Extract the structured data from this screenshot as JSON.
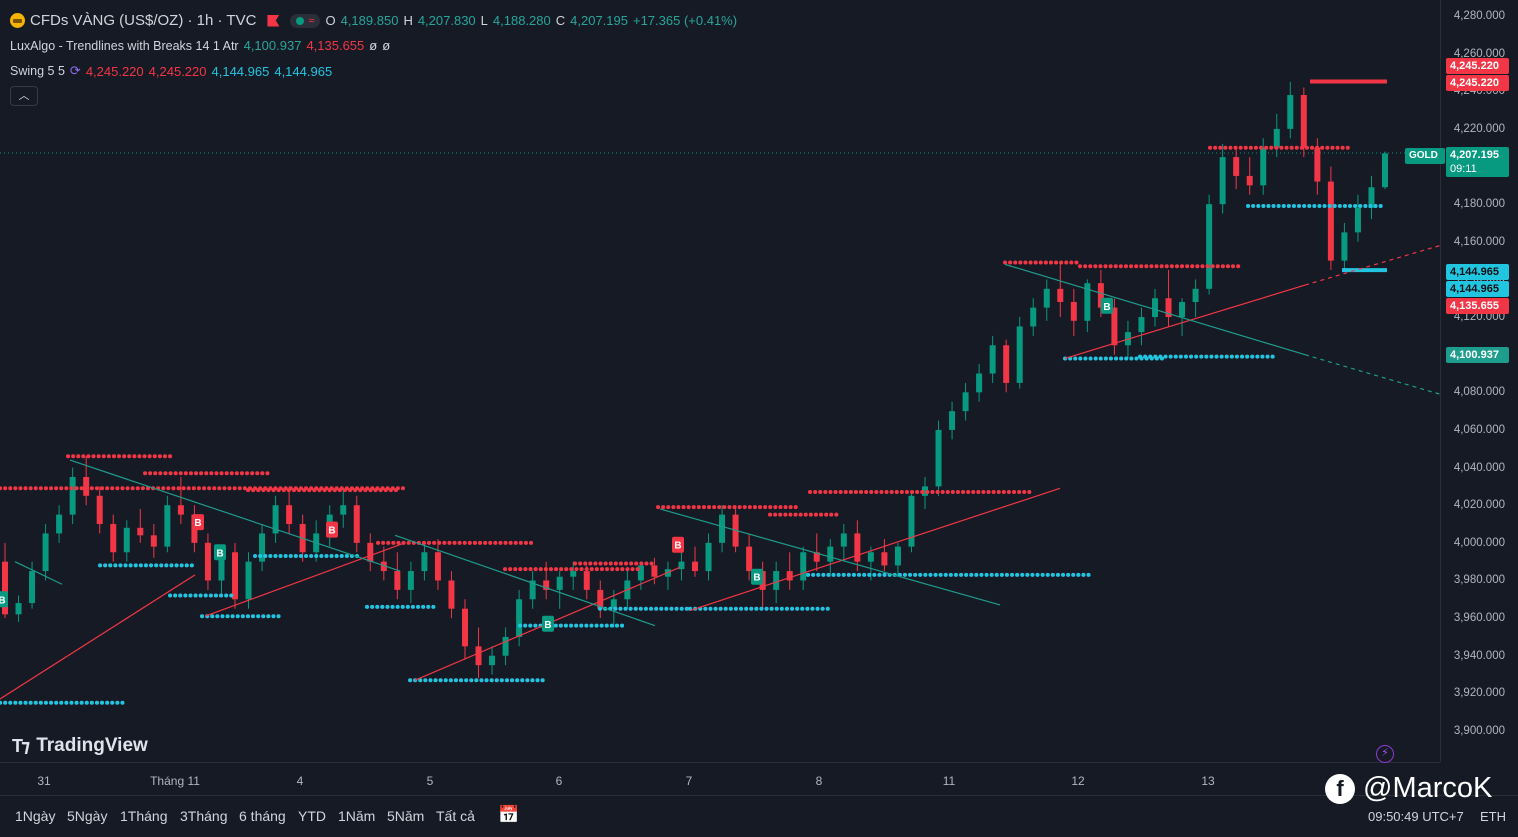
{
  "symbol": {
    "title": "CFDs VÀNG (US$/OZ) · 1h · TVC",
    "o_label": "O",
    "o": "4,189.850",
    "h_label": "H",
    "h": "4,207.830",
    "l_label": "L",
    "l": "4,188.280",
    "c_label": "C",
    "c": "4,207.195",
    "change": "+17.365 (+0.41%)"
  },
  "indicators": [
    {
      "name": "LuxAlgo - Trendlines with Breaks 14 1 Atr",
      "v1": "4,100.937",
      "v2": "4,135.655",
      "v3": "ø",
      "v4": "ø"
    },
    {
      "name": "Swing 5 5",
      "v1": "4,245.220",
      "v2": "4,245.220",
      "v3": "4,144.965",
      "v4": "4,144.965"
    }
  ],
  "collapse_icon": "chevron-up",
  "price_axis": {
    "ticks": [
      "4,280.000",
      "4,260.000",
      "4,240.000",
      "4,220.000",
      "4,200.000",
      "4,180.000",
      "4,160.000",
      "4,140.000",
      "4,120.000",
      "4,100.000",
      "4,080.000",
      "4,060.000",
      "4,040.000",
      "4,020.000",
      "4,000.000",
      "3,980.000",
      "3,960.000",
      "3,940.000",
      "3,920.000",
      "3,900.000"
    ],
    "ticks_value": [
      4280,
      4260,
      4240,
      4220,
      4200,
      4180,
      4160,
      4140,
      4120,
      4100,
      4080,
      4060,
      4040,
      4020,
      4000,
      3980,
      3960,
      3940,
      3920,
      3900
    ],
    "labels": {
      "swing_high_a": "4,245.220",
      "swing_high_b": "4,245.220",
      "gold_tag": "GOLD",
      "last_price": "4,207.195",
      "countdown": "09:11",
      "swing_low_a": "4,144.965",
      "swing_low_b": "4,144.965",
      "trend_red": "4,135.655",
      "trend_green": "4,100.937"
    }
  },
  "time_axis": [
    "31",
    "Tháng 11",
    "4",
    "5",
    "6",
    "7",
    "8",
    "11",
    "12",
    "13"
  ],
  "ranges": [
    "1Ngày",
    "5Ngày",
    "1Tháng",
    "3Tháng",
    "6 tháng",
    "YTD",
    "1Năm",
    "5Năm",
    "Tất cả"
  ],
  "clock": "09:50:49 UTC+7",
  "session": "ETH",
  "logo_text": "TradingView",
  "watermark": "@MarcoK",
  "colors": {
    "up": "#089981",
    "down": "#f23645",
    "cyan": "#22c5e0",
    "trend_green": "#1e9c8c"
  },
  "chart_data": {
    "type": "candlestick",
    "note_series": [
      "Swing highs (red dotted)",
      "Swing lows (cyan dotted)"
    ],
    "markers": [
      "B",
      "B",
      "B",
      "B",
      "B",
      "B",
      "B",
      "B"
    ],
    "ylim": [
      3890,
      4285
    ],
    "ohlc": [
      [
        3990,
        4000,
        3960,
        3962
      ],
      [
        3962,
        3972,
        3958,
        3968
      ],
      [
        3968,
        3990,
        3965,
        3985
      ],
      [
        3985,
        4010,
        3980,
        4005
      ],
      [
        4005,
        4020,
        4000,
        4015
      ],
      [
        4015,
        4040,
        4010,
        4035
      ],
      [
        4035,
        4046,
        4020,
        4025
      ],
      [
        4025,
        4030,
        4005,
        4010
      ],
      [
        4010,
        4015,
        3990,
        3995
      ],
      [
        3995,
        4012,
        3990,
        4008
      ],
      [
        4008,
        4018,
        4000,
        4004
      ],
      [
        4004,
        4010,
        3992,
        3998
      ],
      [
        3998,
        4025,
        3995,
        4020
      ],
      [
        4020,
        4035,
        4010,
        4015
      ],
      [
        4015,
        4020,
        3995,
        4000
      ],
      [
        4000,
        4005,
        3975,
        3980
      ],
      [
        3980,
        3998,
        3972,
        3995
      ],
      [
        3995,
        4000,
        3965,
        3970
      ],
      [
        3970,
        3995,
        3965,
        3990
      ],
      [
        3990,
        4010,
        3985,
        4005
      ],
      [
        4005,
        4025,
        4000,
        4020
      ],
      [
        4020,
        4030,
        4005,
        4010
      ],
      [
        4010,
        4015,
        3990,
        3995
      ],
      [
        3995,
        4012,
        3990,
        4005
      ],
      [
        4005,
        4020,
        3998,
        4015
      ],
      [
        4015,
        4028,
        4008,
        4020
      ],
      [
        4020,
        4025,
        3995,
        4000
      ],
      [
        4000,
        4005,
        3985,
        3990
      ],
      [
        3990,
        3998,
        3980,
        3985
      ],
      [
        3985,
        3995,
        3970,
        3975
      ],
      [
        3975,
        3990,
        3968,
        3985
      ],
      [
        3985,
        4000,
        3980,
        3995
      ],
      [
        3995,
        4002,
        3975,
        3980
      ],
      [
        3980,
        3985,
        3960,
        3965
      ],
      [
        3965,
        3970,
        3938,
        3945
      ],
      [
        3945,
        3955,
        3928,
        3935
      ],
      [
        3935,
        3945,
        3930,
        3940
      ],
      [
        3940,
        3955,
        3935,
        3950
      ],
      [
        3950,
        3975,
        3945,
        3970
      ],
      [
        3970,
        3985,
        3965,
        3980
      ],
      [
        3980,
        3990,
        3970,
        3975
      ],
      [
        3975,
        3985,
        3965,
        3982
      ],
      [
        3982,
        3990,
        3975,
        3985
      ],
      [
        3985,
        3988,
        3970,
        3975
      ],
      [
        3975,
        3980,
        3960,
        3965
      ],
      [
        3965,
        3975,
        3955,
        3970
      ],
      [
        3970,
        3985,
        3965,
        3980
      ],
      [
        3980,
        3990,
        3975,
        3988
      ],
      [
        3988,
        3992,
        3978,
        3982
      ],
      [
        3982,
        3990,
        3975,
        3986
      ],
      [
        3986,
        3995,
        3980,
        3990
      ],
      [
        3990,
        3998,
        3982,
        3985
      ],
      [
        3985,
        4005,
        3980,
        4000
      ],
      [
        4000,
        4020,
        3995,
        4015
      ],
      [
        4015,
        4020,
        3995,
        3998
      ],
      [
        3998,
        4005,
        3980,
        3985
      ],
      [
        3985,
        3990,
        3965,
        3975
      ],
      [
        3975,
        3990,
        3968,
        3985
      ],
      [
        3985,
        3995,
        3975,
        3980
      ],
      [
        3980,
        3998,
        3975,
        3995
      ],
      [
        3995,
        4005,
        3985,
        3990
      ],
      [
        3990,
        4002,
        3982,
        3998
      ],
      [
        3998,
        4010,
        3990,
        4005
      ],
      [
        4005,
        4012,
        3985,
        3990
      ],
      [
        3990,
        3998,
        3980,
        3995
      ],
      [
        3995,
        4002,
        3985,
        3988
      ],
      [
        3988,
        4000,
        3982,
        3998
      ],
      [
        3998,
        4028,
        3995,
        4025
      ],
      [
        4025,
        4035,
        4018,
        4030
      ],
      [
        4030,
        4065,
        4025,
        4060
      ],
      [
        4060,
        4075,
        4055,
        4070
      ],
      [
        4070,
        4085,
        4065,
        4080
      ],
      [
        4080,
        4095,
        4075,
        4090
      ],
      [
        4090,
        4110,
        4085,
        4105
      ],
      [
        4105,
        4108,
        4080,
        4085
      ],
      [
        4085,
        4120,
        4082,
        4115
      ],
      [
        4115,
        4130,
        4110,
        4125
      ],
      [
        4125,
        4140,
        4118,
        4135
      ],
      [
        4135,
        4148,
        4120,
        4128
      ],
      [
        4128,
        4135,
        4110,
        4118
      ],
      [
        4118,
        4140,
        4112,
        4138
      ],
      [
        4138,
        4145,
        4120,
        4125
      ],
      [
        4125,
        4130,
        4100,
        4105
      ],
      [
        4105,
        4118,
        4098,
        4112
      ],
      [
        4112,
        4125,
        4105,
        4120
      ],
      [
        4120,
        4135,
        4115,
        4130
      ],
      [
        4130,
        4145,
        4115,
        4120
      ],
      [
        4120,
        4130,
        4110,
        4128
      ],
      [
        4128,
        4140,
        4120,
        4135
      ],
      [
        4135,
        4185,
        4132,
        4180
      ],
      [
        4180,
        4212,
        4175,
        4205
      ],
      [
        4205,
        4210,
        4188,
        4195
      ],
      [
        4195,
        4205,
        4185,
        4190
      ],
      [
        4190,
        4215,
        4185,
        4210
      ],
      [
        4210,
        4228,
        4205,
        4220
      ],
      [
        4220,
        4245,
        4215,
        4238
      ],
      [
        4238,
        4242,
        4205,
        4210
      ],
      [
        4210,
        4215,
        4185,
        4192
      ],
      [
        4192,
        4200,
        4145,
        4150
      ],
      [
        4150,
        4170,
        4145,
        4165
      ],
      [
        4165,
        4185,
        4160,
        4178
      ],
      [
        4178,
        4195,
        4172,
        4189
      ],
      [
        4189,
        4208,
        4188,
        4207
      ]
    ]
  }
}
